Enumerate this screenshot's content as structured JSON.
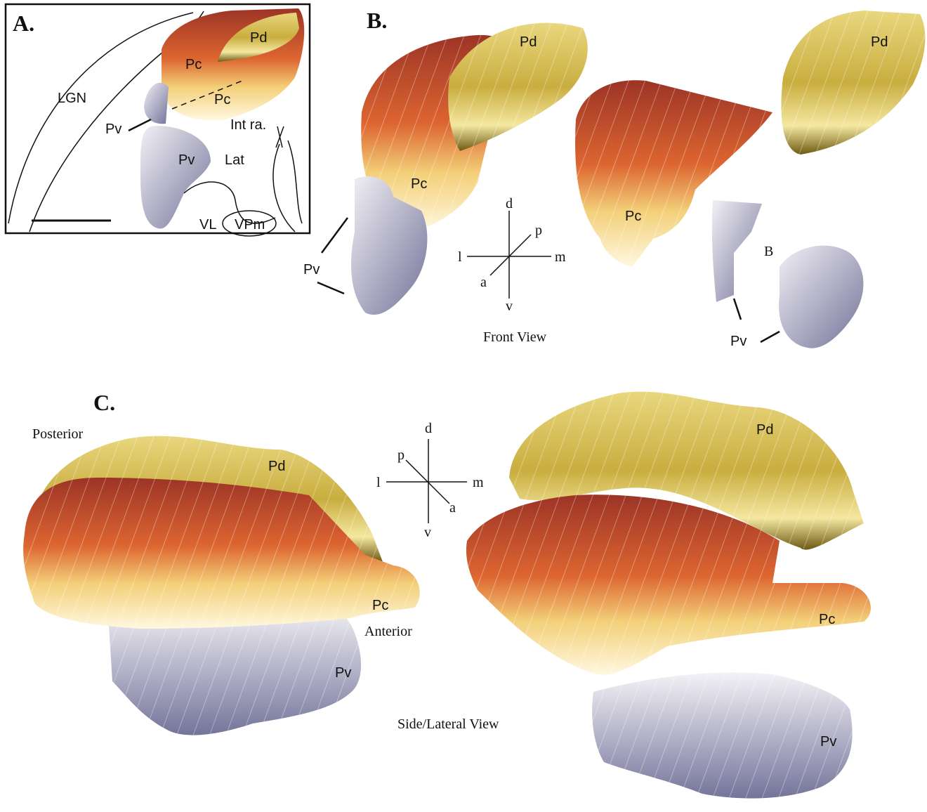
{
  "panel_a": {
    "label": "A.",
    "regions": [
      "Pd",
      "Pc",
      "Pc",
      "LGN",
      "Pv",
      "Int ra.",
      "Pv",
      "Lat",
      "VL",
      "VPm"
    ]
  },
  "panel_b": {
    "label": "B.",
    "regions": [
      "Pd",
      "Pd",
      "Pc",
      "Pc",
      "B",
      "Pv",
      "Pv"
    ],
    "axes": [
      "d",
      "p",
      "l",
      "m",
      "a",
      "v"
    ],
    "caption": "Front View"
  },
  "panel_c": {
    "label": "C.",
    "regions": [
      "Posterior",
      "Pd",
      "Pc",
      "Anterior",
      "Pv",
      "Pd",
      "Pc",
      "Pv"
    ],
    "axes": [
      "d",
      "p",
      "l",
      "m",
      "a",
      "v"
    ],
    "caption": "Side/Lateral View"
  }
}
